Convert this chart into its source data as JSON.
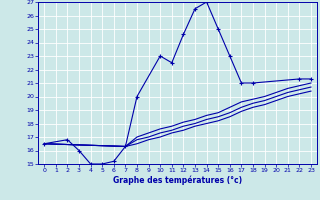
{
  "xlabel": "Graphe des températures (°c)",
  "bg_color": "#cce8e8",
  "grid_color": "#aacccc",
  "line_color": "#0000aa",
  "xlim": [
    -0.5,
    23.5
  ],
  "ylim": [
    15,
    27
  ],
  "xticks": [
    0,
    1,
    2,
    3,
    4,
    5,
    6,
    7,
    8,
    9,
    10,
    11,
    12,
    13,
    14,
    15,
    16,
    17,
    18,
    19,
    20,
    21,
    22,
    23
  ],
  "yticks": [
    15,
    16,
    17,
    18,
    19,
    20,
    21,
    22,
    23,
    24,
    25,
    26,
    27
  ],
  "main_x": [
    0,
    2,
    3,
    4,
    5,
    6,
    7,
    8,
    10,
    11,
    12,
    13,
    14,
    15,
    16,
    17,
    18,
    22,
    23
  ],
  "main_y": [
    16.5,
    16.8,
    16.0,
    15.0,
    15.0,
    15.2,
    16.3,
    20.0,
    23.0,
    22.5,
    24.6,
    26.5,
    27.0,
    25.0,
    23.0,
    21.0,
    21.0,
    21.3,
    21.3
  ],
  "line2_x": [
    0,
    7,
    8,
    9,
    10,
    11,
    12,
    13,
    14,
    15,
    16,
    17,
    18,
    19,
    20,
    21,
    22,
    23
  ],
  "line2_y": [
    16.5,
    16.3,
    17.0,
    17.3,
    17.6,
    17.8,
    18.1,
    18.3,
    18.6,
    18.8,
    19.2,
    19.6,
    19.8,
    20.0,
    20.3,
    20.6,
    20.8,
    21.0
  ],
  "line3_x": [
    0,
    7,
    8,
    9,
    10,
    11,
    12,
    13,
    14,
    15,
    16,
    17,
    18,
    19,
    20,
    21,
    22,
    23
  ],
  "line3_y": [
    16.5,
    16.3,
    16.8,
    17.0,
    17.3,
    17.5,
    17.8,
    18.0,
    18.3,
    18.5,
    18.8,
    19.2,
    19.5,
    19.7,
    20.0,
    20.3,
    20.5,
    20.7
  ],
  "line4_x": [
    0,
    7,
    8,
    9,
    10,
    11,
    12,
    13,
    14,
    15,
    16,
    17,
    18,
    19,
    20,
    21,
    22,
    23
  ],
  "line4_y": [
    16.5,
    16.3,
    16.5,
    16.8,
    17.0,
    17.3,
    17.5,
    17.8,
    18.0,
    18.2,
    18.5,
    18.9,
    19.2,
    19.4,
    19.7,
    20.0,
    20.2,
    20.4
  ]
}
